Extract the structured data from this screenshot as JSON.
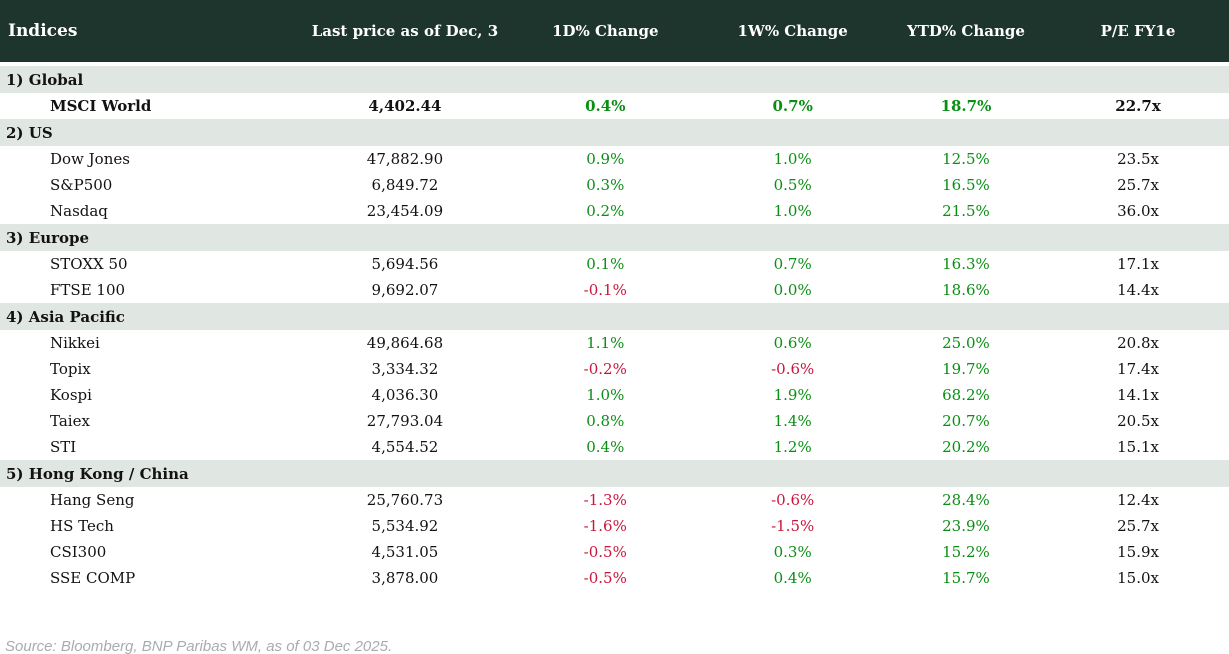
{
  "table": {
    "columns": [
      "Indices",
      "Last price as of Dec, 3",
      "1D% Change",
      "1W% Change",
      "YTD% Change",
      "P/E FY1e"
    ],
    "sections": [
      {
        "label": "1) Global",
        "rows": [
          {
            "name": "MSCI World",
            "last_price": "4,402.44",
            "d1_change": "0.4%",
            "w1_change": "0.7%",
            "ytd_change": "18.7%",
            "pe_fy1e": "22.7x",
            "bold": true
          }
        ]
      },
      {
        "label": "2) US",
        "rows": [
          {
            "name": "Dow Jones",
            "last_price": "47,882.90",
            "d1_change": "0.9%",
            "w1_change": "1.0%",
            "ytd_change": "12.5%",
            "pe_fy1e": "23.5x"
          },
          {
            "name": "S&P500",
            "last_price": "6,849.72",
            "d1_change": "0.3%",
            "w1_change": "0.5%",
            "ytd_change": "16.5%",
            "pe_fy1e": "25.7x"
          },
          {
            "name": "Nasdaq",
            "last_price": "23,454.09",
            "d1_change": "0.2%",
            "w1_change": "1.0%",
            "ytd_change": "21.5%",
            "pe_fy1e": "36.0x"
          }
        ]
      },
      {
        "label": "3) Europe",
        "rows": [
          {
            "name": "STOXX 50",
            "last_price": "5,694.56",
            "d1_change": "0.1%",
            "w1_change": "0.7%",
            "ytd_change": "16.3%",
            "pe_fy1e": "17.1x"
          },
          {
            "name": "FTSE 100",
            "last_price": "9,692.07",
            "d1_change": "-0.1%",
            "w1_change": "0.0%",
            "ytd_change": "18.6%",
            "pe_fy1e": "14.4x"
          }
        ]
      },
      {
        "label": "4) Asia Pacific",
        "rows": [
          {
            "name": "Nikkei",
            "last_price": "49,864.68",
            "d1_change": "1.1%",
            "w1_change": "0.6%",
            "ytd_change": "25.0%",
            "pe_fy1e": "20.8x"
          },
          {
            "name": "Topix",
            "last_price": "3,334.32",
            "d1_change": "-0.2%",
            "w1_change": "-0.6%",
            "ytd_change": "19.7%",
            "pe_fy1e": "17.4x"
          },
          {
            "name": "Kospi",
            "last_price": "4,036.30",
            "d1_change": "1.0%",
            "w1_change": "1.9%",
            "ytd_change": "68.2%",
            "pe_fy1e": "14.1x"
          },
          {
            "name": "Taiex",
            "last_price": "27,793.04",
            "d1_change": "0.8%",
            "w1_change": "1.4%",
            "ytd_change": "20.7%",
            "pe_fy1e": "20.5x"
          },
          {
            "name": "STI",
            "last_price": "4,554.52",
            "d1_change": "0.4%",
            "w1_change": "1.2%",
            "ytd_change": "20.2%",
            "pe_fy1e": "15.1x"
          }
        ]
      },
      {
        "label": "5) Hong Kong / China",
        "rows": [
          {
            "name": "Hang Seng",
            "last_price": "25,760.73",
            "d1_change": "-1.3%",
            "w1_change": "-0.6%",
            "ytd_change": "28.4%",
            "pe_fy1e": "12.4x"
          },
          {
            "name": "HS Tech",
            "last_price": "5,534.92",
            "d1_change": "-1.6%",
            "w1_change": "-1.5%",
            "ytd_change": "23.9%",
            "pe_fy1e": "25.7x"
          },
          {
            "name": "CSI300",
            "last_price": "4,531.05",
            "d1_change": "-0.5%",
            "w1_change": "0.3%",
            "ytd_change": "15.2%",
            "pe_fy1e": "15.9x"
          },
          {
            "name": "SSE COMP",
            "last_price": "3,878.00",
            "d1_change": "-0.5%",
            "w1_change": "0.4%",
            "ytd_change": "15.7%",
            "pe_fy1e": "15.0x"
          }
        ]
      }
    ]
  },
  "footer": {
    "source": "Source: Bloomberg, BNP Paribas WM, as of 03 Dec 2025."
  },
  "colors": {
    "header_bg": "#1d352c",
    "band_bg": "#e0e6e1",
    "positive": "#0a8f14",
    "negative": "#c9163c",
    "text": "#121212",
    "source_text": "#a6acb2"
  }
}
